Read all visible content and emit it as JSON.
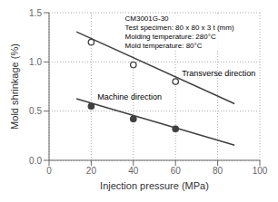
{
  "chart_data": {
    "type": "scatter",
    "xlabel": "Injection pressure (MPa)",
    "ylabel": "Mold shrinkage (%)",
    "xlim": [
      0,
      100
    ],
    "ylim": [
      0,
      1.5
    ],
    "xticks": [
      0,
      20,
      40,
      60,
      80,
      100
    ],
    "yticks": [
      {
        "value": 0,
        "label": "0.0"
      },
      0.5,
      {
        "value": 1.0,
        "label": "1.0"
      },
      1.5
    ],
    "grid": true,
    "series": [
      {
        "type": "scatter",
        "marker": "open_circle",
        "color": "#404040",
        "x": [
          20,
          40,
          60
        ],
        "values": [
          1.2,
          0.97,
          0.8
        ]
      },
      {
        "type": "line",
        "color": "#404040",
        "x": [
          13,
          88
        ],
        "values": [
          1.305,
          0.575
        ]
      },
      {
        "type": "scatter",
        "marker": "circle",
        "color": "#404040",
        "x": [
          20,
          40,
          60
        ],
        "values": [
          0.55,
          0.42,
          0.32
        ]
      },
      {
        "type": "line",
        "color": "#404040",
        "x": [
          13,
          88
        ],
        "values": [
          0.625,
          0.155
        ]
      }
    ],
    "annotations": [
      {
        "text": "Transverse direction",
        "x": 63,
        "y": 0.84
      },
      {
        "text": "Machine direction",
        "x": 23,
        "y": 0.595
      },
      {
        "text": "CM3001G-30\nTest specimen: 80 x 80 x 3 t (mm)\nMolding temperature: 280°C\nMold temperature: 80°C"
      }
    ]
  }
}
